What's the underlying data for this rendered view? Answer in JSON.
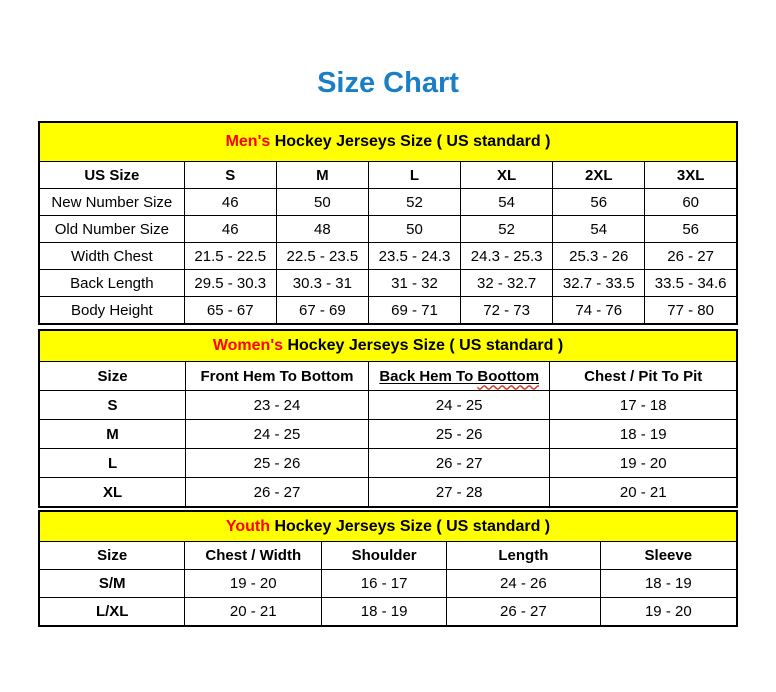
{
  "page": {
    "title": "Size Chart"
  },
  "colors": {
    "title_blue": "#1b7fc5",
    "band_yellow": "#ffff00",
    "accent_red": "#ff0000",
    "squiggle_red": "#d23a2a",
    "border_black": "#000000"
  },
  "tables": [
    {
      "name": "mens",
      "band": {
        "highlight": "Men's",
        "text": " Hockey Jerseys Size ( US standard )"
      },
      "columns": [
        "US Size",
        "S",
        "M",
        "L",
        "XL",
        "2XL",
        "3XL"
      ],
      "rows": [
        {
          "label": "New Number Size",
          "values": [
            "46",
            "50",
            "52",
            "54",
            "56",
            "60"
          ]
        },
        {
          "label": "Old Number Size",
          "values": [
            "46",
            "48",
            "50",
            "52",
            "54",
            "56"
          ]
        },
        {
          "label": "Width Chest",
          "values": [
            "21.5 - 22.5",
            "22.5 - 23.5",
            "23.5 - 24.3",
            "24.3 - 25.3",
            "25.3 - 26",
            "26 - 27"
          ]
        },
        {
          "label": "Back Length",
          "values": [
            "29.5 - 30.3",
            "30.3 - 31",
            "31 - 32",
            "32 - 32.7",
            "32.7 - 33.5",
            "33.5 - 34.6"
          ]
        },
        {
          "label": "Body Height",
          "values": [
            "65 - 67",
            "67 - 69",
            "69 - 71",
            "72 - 73",
            "74 - 76",
            "77 - 80"
          ]
        }
      ]
    },
    {
      "name": "womens",
      "band": {
        "highlight": "Women's",
        "text": " Hockey Jerseys Size ( US standard )"
      },
      "columns": [
        "Size",
        "Front Hem To Bottom",
        "Back Hem To Boottom",
        "Chest / Pit To Pit"
      ],
      "underlined_column": "Back Hem To Boottom",
      "misspelled_word": "Boottom",
      "rows": [
        {
          "label": "S",
          "values": [
            "23 - 24",
            "24 - 25",
            "17 - 18"
          ]
        },
        {
          "label": "M",
          "values": [
            "24 - 25",
            "25 - 26",
            "18 - 19"
          ]
        },
        {
          "label": "L",
          "values": [
            "25 - 26",
            "26 - 27",
            "19 - 20"
          ]
        },
        {
          "label": "XL",
          "values": [
            "26 - 27",
            "27 - 28",
            "20 - 21"
          ]
        }
      ]
    },
    {
      "name": "youth",
      "band": {
        "highlight": "Youth",
        "text": " Hockey Jerseys Size ( US standard )"
      },
      "columns": [
        "Size",
        "Chest / Width",
        "Shoulder",
        "Length",
        "Sleeve"
      ],
      "rows": [
        {
          "label": "S/M",
          "values": [
            "19 - 20",
            "16 - 17",
            "24 - 26",
            "18 - 19"
          ]
        },
        {
          "label": "L/XL",
          "values": [
            "20 - 21",
            "18 - 19",
            "26 - 27",
            "19 - 20"
          ]
        }
      ]
    }
  ]
}
